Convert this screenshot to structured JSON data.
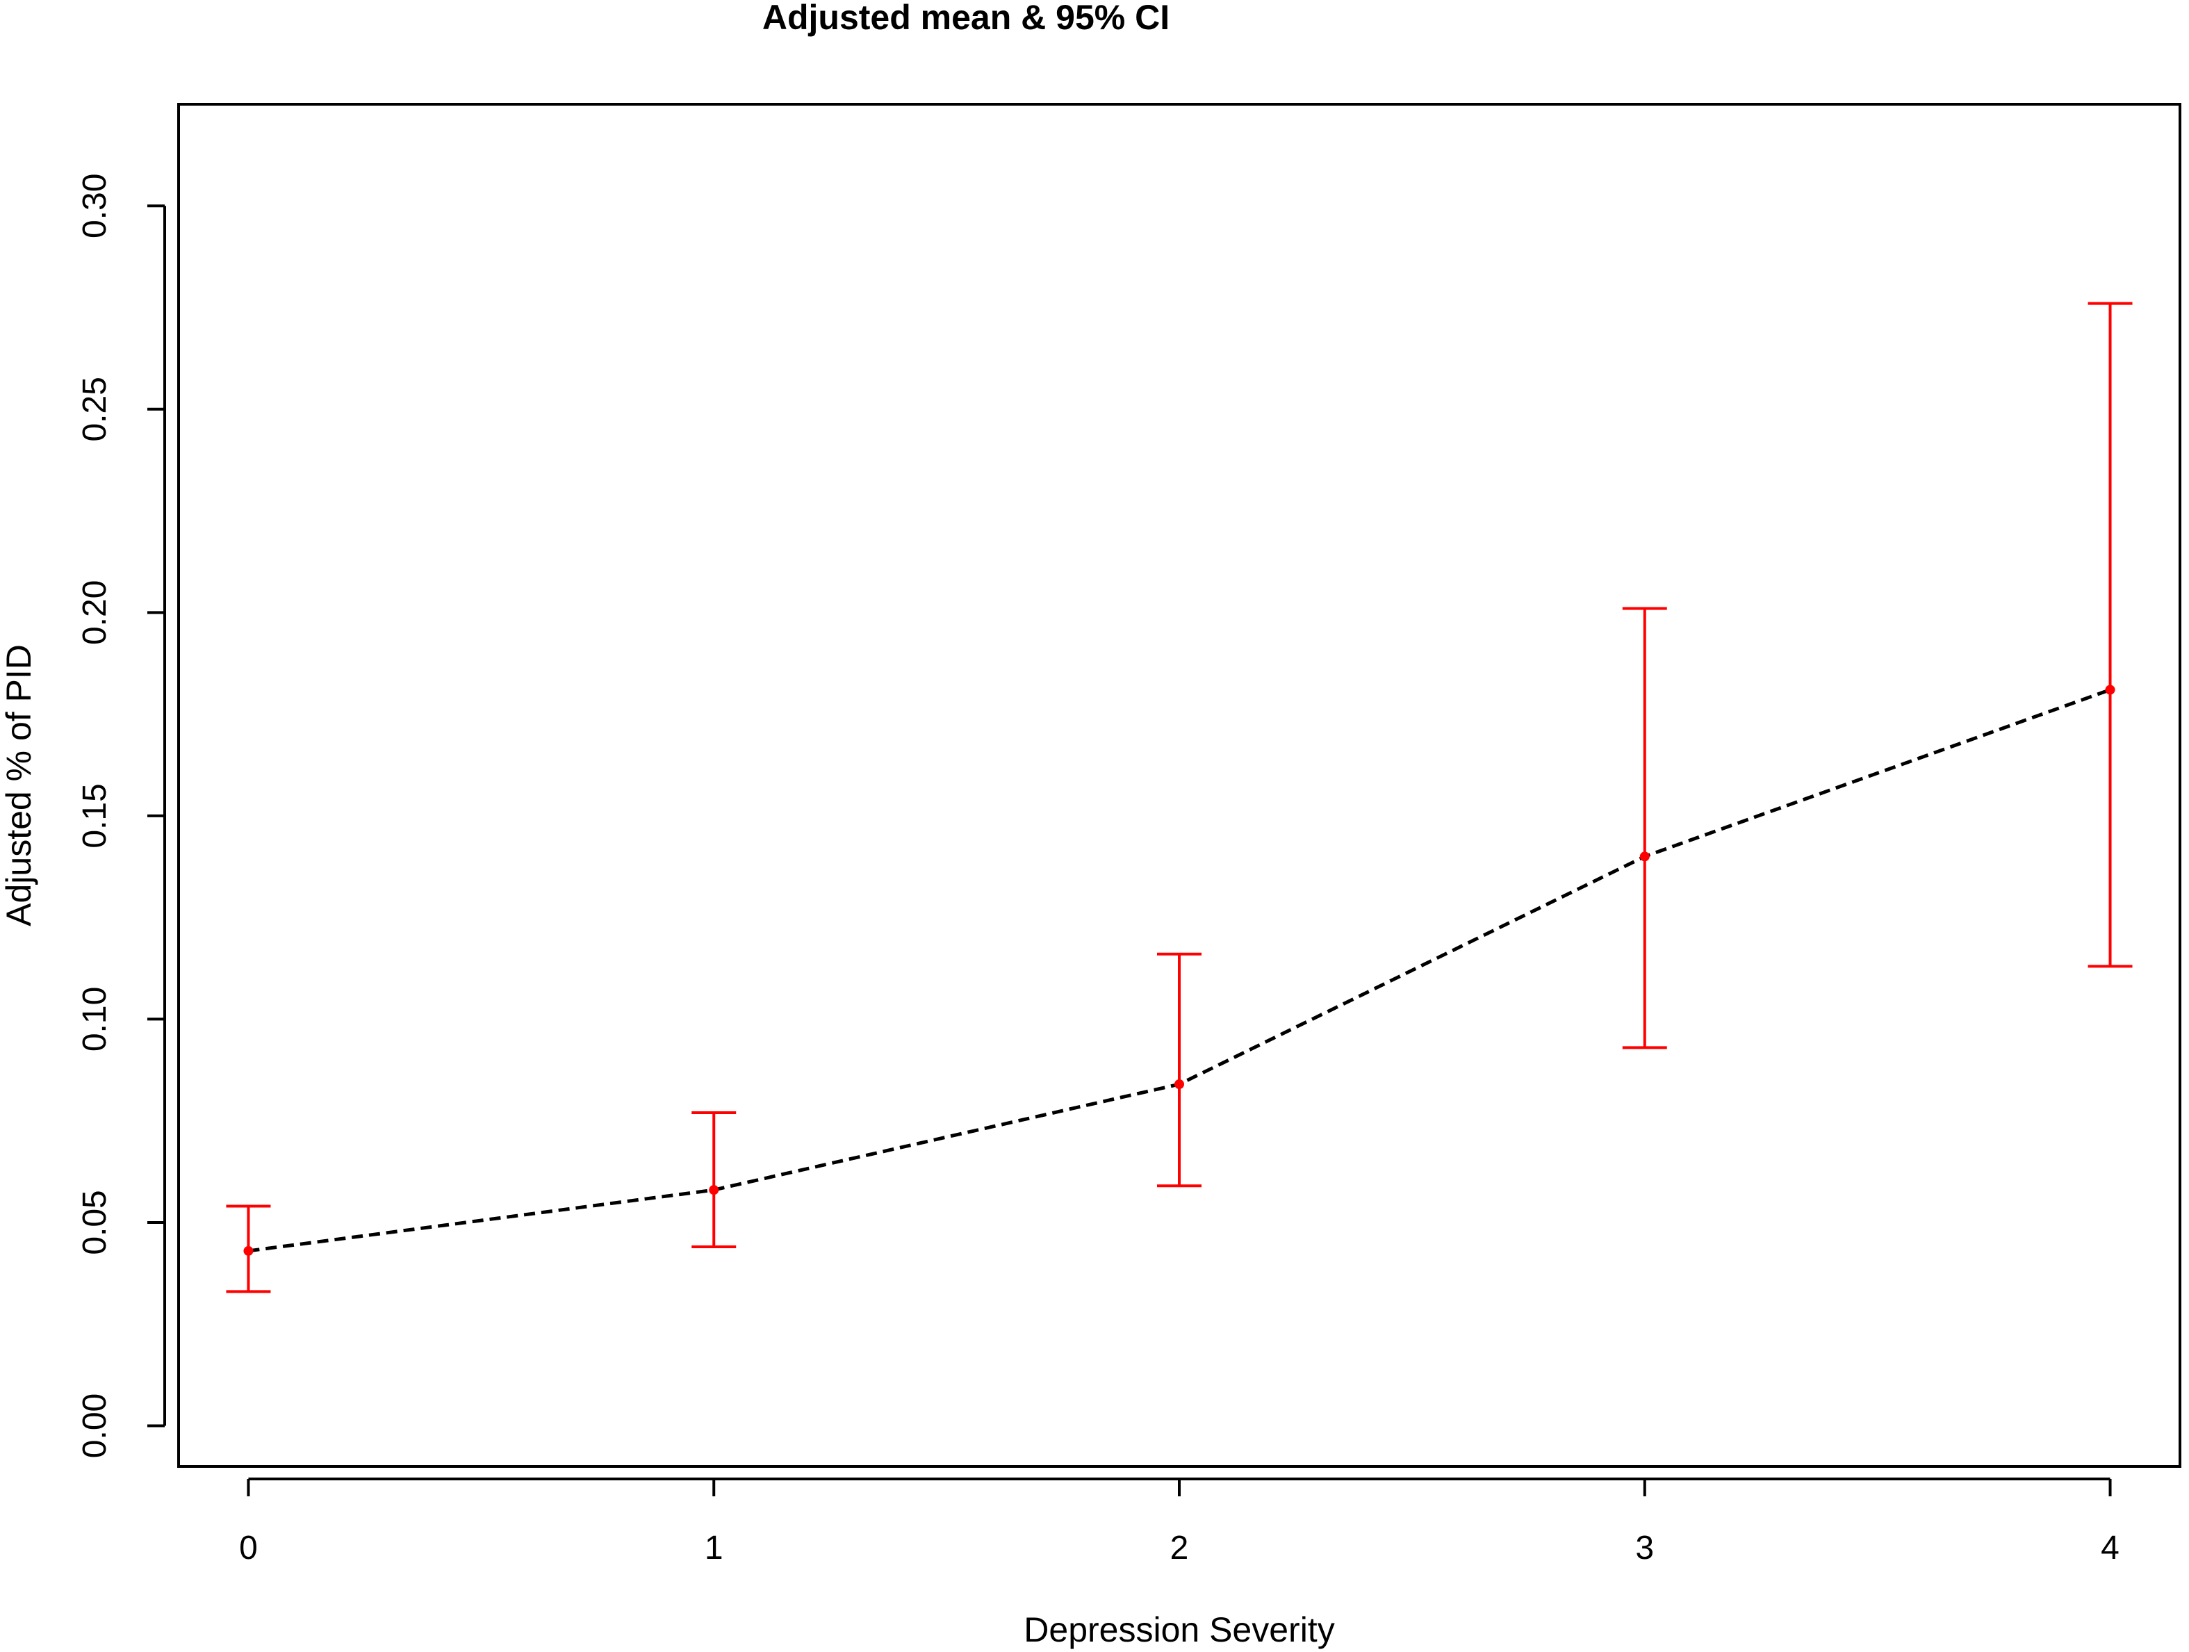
{
  "chart_data": {
    "type": "line",
    "title": "Adjusted mean & 95% CI",
    "xlabel": "Depression Severity",
    "ylabel": "Adjusted % of PID",
    "x": [
      0,
      1,
      2,
      3,
      4
    ],
    "x_tick_labels": [
      "0",
      "1",
      "2",
      "3",
      "4"
    ],
    "y_ticks": [
      0.0,
      0.05,
      0.1,
      0.15,
      0.2,
      0.25,
      0.3
    ],
    "y_tick_labels": [
      "0.00",
      "0.05",
      "0.10",
      "0.15",
      "0.20",
      "0.25",
      "0.30"
    ],
    "xlim": [
      -0.15,
      4.15
    ],
    "ylim": [
      -0.01,
      0.325
    ],
    "series": [
      {
        "values": [
          0.043,
          0.058,
          0.084,
          0.14,
          0.181
        ],
        "ci_lower": [
          0.033,
          0.044,
          0.059,
          0.093,
          0.113
        ],
        "ci_upper": [
          0.054,
          0.077,
          0.116,
          0.201,
          0.276
        ]
      }
    ],
    "grid": false,
    "colors": {
      "line": "#000000",
      "error_bars": "#ff0000",
      "points": "#ff0000",
      "frame": "#000000"
    }
  }
}
